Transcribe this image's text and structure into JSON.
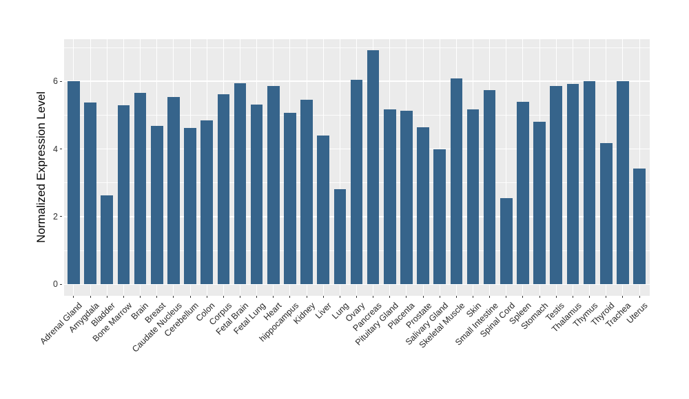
{
  "chart_data": {
    "type": "bar",
    "title": "",
    "xlabel": "",
    "ylabel": "Normalized Expression Level",
    "categories": [
      "Adrenal Gland",
      "Amygdala",
      "Bladder",
      "Bone Marrow",
      "Brain",
      "Breast",
      "Caudate Nucleus",
      "Cerebellum",
      "Colon",
      "Corpus",
      "Fetal Brain",
      "Fetal Lung",
      "Heart",
      "hippocampus",
      "Kidney",
      "Liver",
      "Lung",
      "Ovary",
      "Pancreas",
      "Pituitary Gland",
      "Placenta",
      "Prostate",
      "Salivary Gland",
      "Skeletal Muscle",
      "Skin",
      "Small Intestine",
      "Spinal Cord",
      "Spleen",
      "Stomach",
      "Testis",
      "Thalamus",
      "Thymus",
      "Thyroid",
      "Trachea",
      "Uterus"
    ],
    "values": [
      6.0,
      5.37,
      2.62,
      5.3,
      5.66,
      4.69,
      5.53,
      4.62,
      4.84,
      5.62,
      5.94,
      5.31,
      5.85,
      5.06,
      5.45,
      4.4,
      2.81,
      6.04,
      6.92,
      5.16,
      5.12,
      4.65,
      3.99,
      6.08,
      5.16,
      5.74,
      2.55,
      5.4,
      4.8,
      5.85,
      5.93,
      6.0,
      4.18,
      6.0,
      3.42
    ],
    "yticks": [
      0,
      2,
      4,
      6
    ],
    "yticks_minor": [
      1,
      3,
      5,
      7
    ],
    "ylim": [
      -0.35,
      7.24
    ],
    "grid": true,
    "legend": false,
    "x_label_rotation_deg": 45,
    "colors": {
      "bar": "#36648B",
      "panel_bg": "#EBEBEB",
      "grid": "#FFFFFF",
      "tick_text": "#303030",
      "axis_title": "#000000",
      "tick_mark": "#333333",
      "figure_bg": "#FFFFFF"
    }
  }
}
